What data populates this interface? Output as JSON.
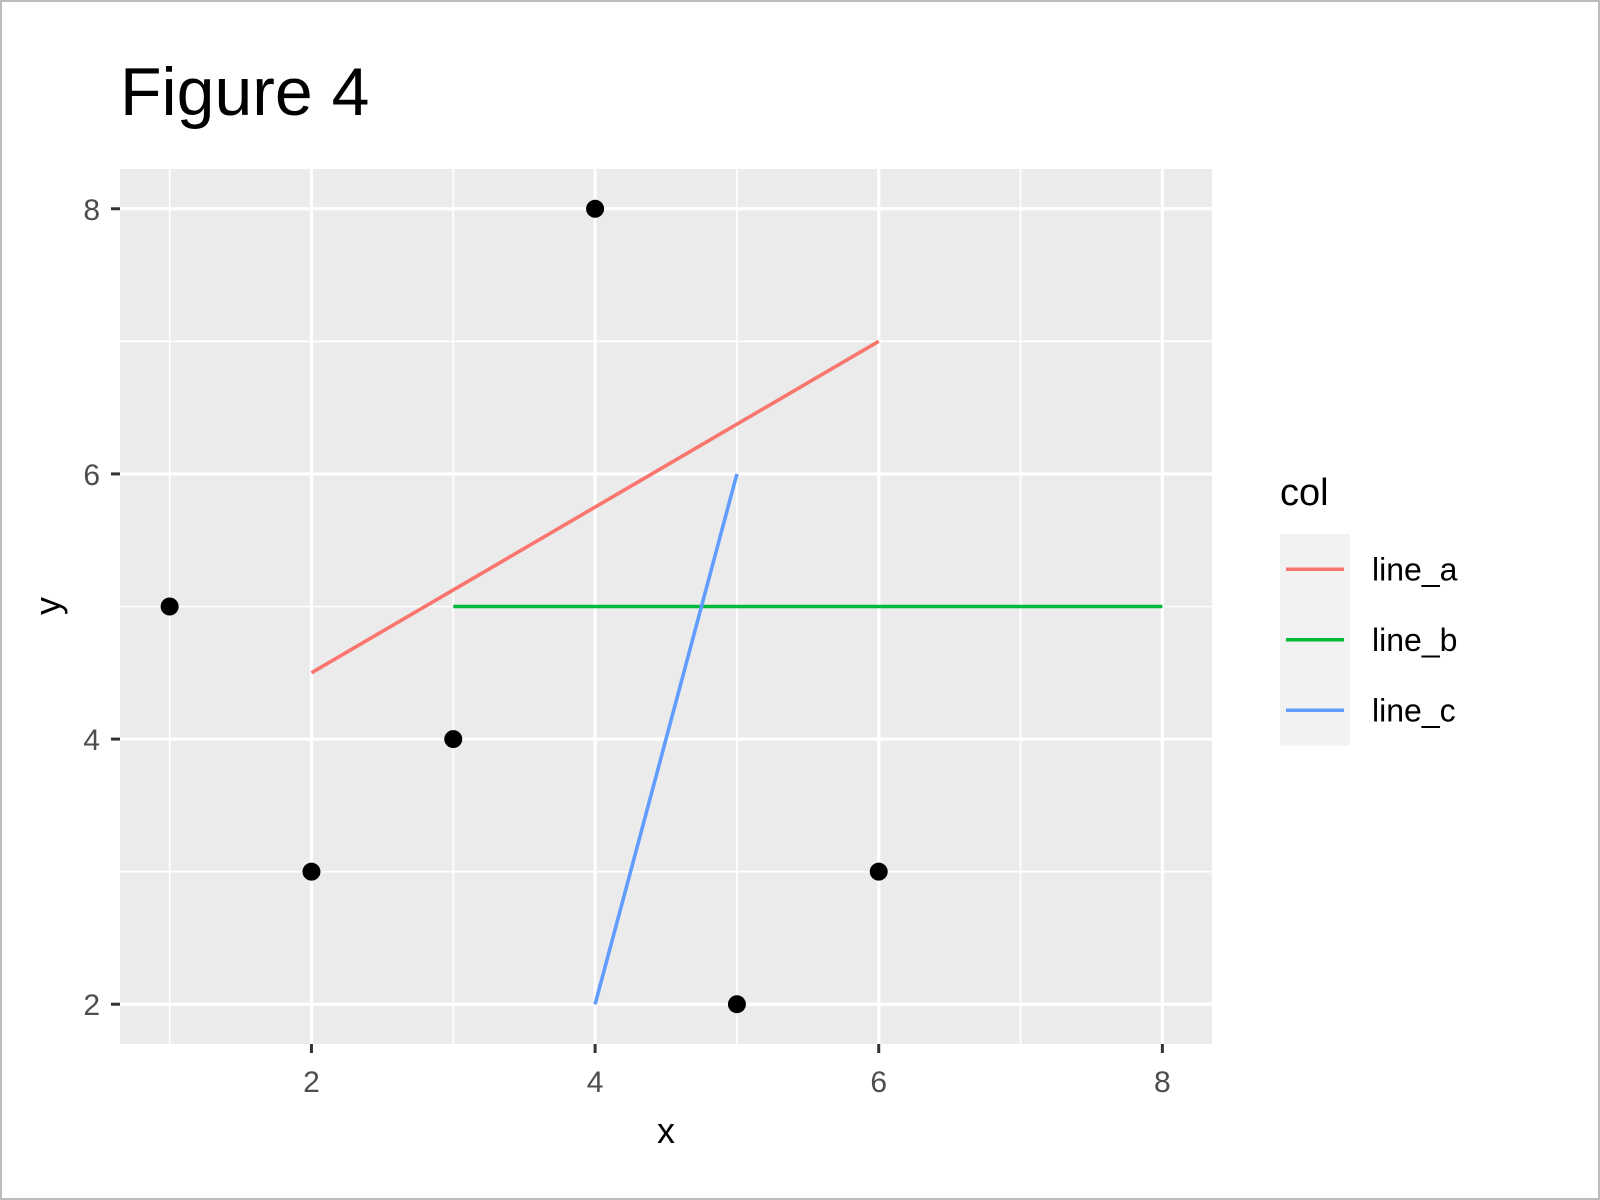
{
  "chart_data": {
    "type": "scatter",
    "title": "Figure 4",
    "xlabel": "x",
    "ylabel": "y",
    "xlim": [
      0.65,
      8.35
    ],
    "ylim": [
      1.7,
      8.3
    ],
    "xticks": [
      2,
      4,
      6,
      8
    ],
    "yticks": [
      2,
      4,
      6,
      8
    ],
    "grid": true,
    "points": [
      {
        "x": 1,
        "y": 5
      },
      {
        "x": 2,
        "y": 3
      },
      {
        "x": 3,
        "y": 4
      },
      {
        "x": 4,
        "y": 8
      },
      {
        "x": 5,
        "y": 2
      },
      {
        "x": 6,
        "y": 3
      }
    ],
    "point_color": "#000000",
    "legend": {
      "title": "col",
      "placement": "right"
    },
    "segments": [
      {
        "name": "line_a",
        "color": "#F8766D",
        "x": [
          2,
          6
        ],
        "y": [
          4.5,
          7
        ]
      },
      {
        "name": "line_b",
        "color": "#00BA38",
        "x": [
          3,
          8
        ],
        "y": [
          5,
          5
        ]
      },
      {
        "name": "line_c",
        "color": "#619CFF",
        "x": [
          4,
          5
        ],
        "y": [
          2,
          6
        ]
      }
    ],
    "panel_background": "#EBEBEB",
    "legend_key_background": "#F2F2F2",
    "gridline_color": "#FFFFFF"
  }
}
